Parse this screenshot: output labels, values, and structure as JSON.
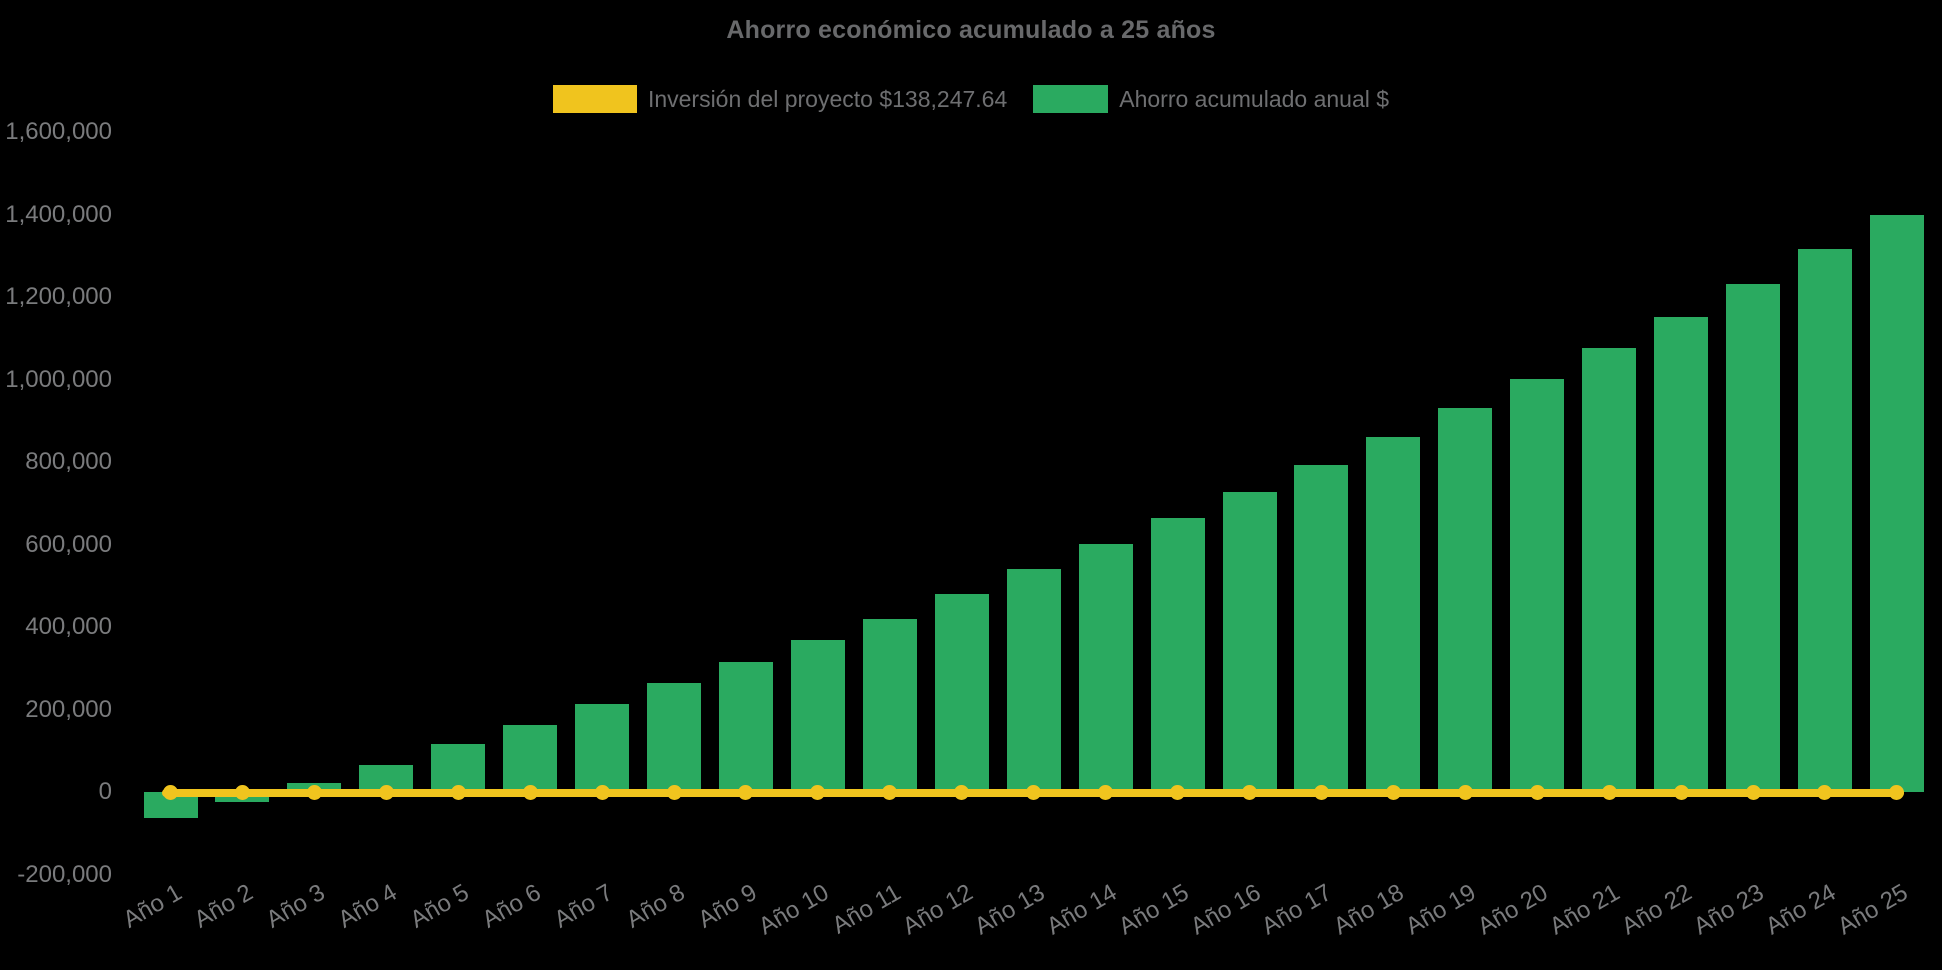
{
  "title": "Ahorro económico acumulado a 25 años",
  "legend": {
    "items": [
      {
        "label": "Inversión del proyecto $138,247.64",
        "color": "#f0c41e",
        "series": "inversion"
      },
      {
        "label": "Ahorro acumulado anual $",
        "color": "#2aaa60",
        "series": "ahorro"
      }
    ]
  },
  "chart_data": {
    "type": "bar",
    "title": "Ahorro económico acumulado a 25 años",
    "categories": [
      "Año 1",
      "Año 2",
      "Año 3",
      "Año 4",
      "Año 5",
      "Año 6",
      "Año 7",
      "Año 8",
      "Año 9",
      "Año 10",
      "Año 11",
      "Año 12",
      "Año 13",
      "Año 14",
      "Año 15",
      "Año 16",
      "Año 17",
      "Año 18",
      "Año 19",
      "Año 20",
      "Año 21",
      "Año 22",
      "Año 23",
      "Año 24",
      "Año 25"
    ],
    "series": [
      {
        "name": "Inversión del proyecto $138,247.64",
        "type": "line",
        "color": "#f0c41e",
        "marker": "circle",
        "values": [
          0,
          0,
          0,
          0,
          0,
          0,
          0,
          0,
          0,
          0,
          0,
          0,
          0,
          0,
          0,
          0,
          0,
          0,
          0,
          0,
          0,
          0,
          0,
          0,
          0
        ]
      },
      {
        "name": "Ahorro acumulado anual $",
        "type": "bar",
        "color": "#2aaa60",
        "values": [
          -64000,
          -23000,
          23000,
          66000,
          116000,
          163000,
          213000,
          265000,
          316000,
          368000,
          420000,
          480000,
          541000,
          601000,
          664000,
          727000,
          793000,
          861000,
          931000,
          1001000,
          1077000,
          1152000,
          1232000,
          1317000,
          1399000
        ]
      }
    ],
    "xlabel": "",
    "ylabel": "",
    "ylim": [
      -200000,
      1600000
    ],
    "ytick_step": 200000,
    "ytick_labels": [
      "-200,000",
      "0",
      "200,000",
      "400,000",
      "600,000",
      "800,000",
      "1,000,000",
      "1,200,000",
      "1,400,000",
      "1,600,000"
    ],
    "grid": false,
    "legend_position": "top",
    "background": "#000000"
  }
}
